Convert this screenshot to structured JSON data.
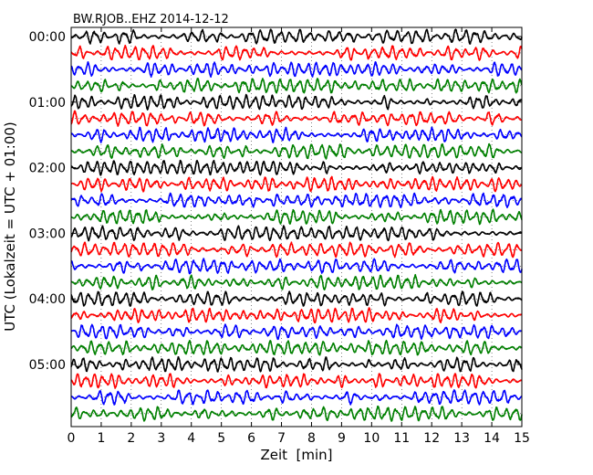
{
  "chart_data": {
    "type": "line",
    "title": "BW.RJOB..EHZ 2014-12-12",
    "xlabel": "Zeit  [min]",
    "ylabel": "UTC (Lokalzeit = UTC + 01:00)",
    "xlim": [
      0,
      15
    ],
    "x_ticks": [
      "0",
      "1",
      "2",
      "3",
      "4",
      "5",
      "6",
      "7",
      "8",
      "9",
      "10",
      "11",
      "12",
      "13",
      "14",
      "15"
    ],
    "y_ticks": [
      "00:00",
      "01:00",
      "02:00",
      "03:00",
      "04:00",
      "05:00"
    ],
    "grid": true,
    "trace_count": 24,
    "trace_interval_min": 15,
    "trace_colors": [
      "#000000",
      "#ff0000",
      "#0000ff",
      "#008000"
    ]
  }
}
